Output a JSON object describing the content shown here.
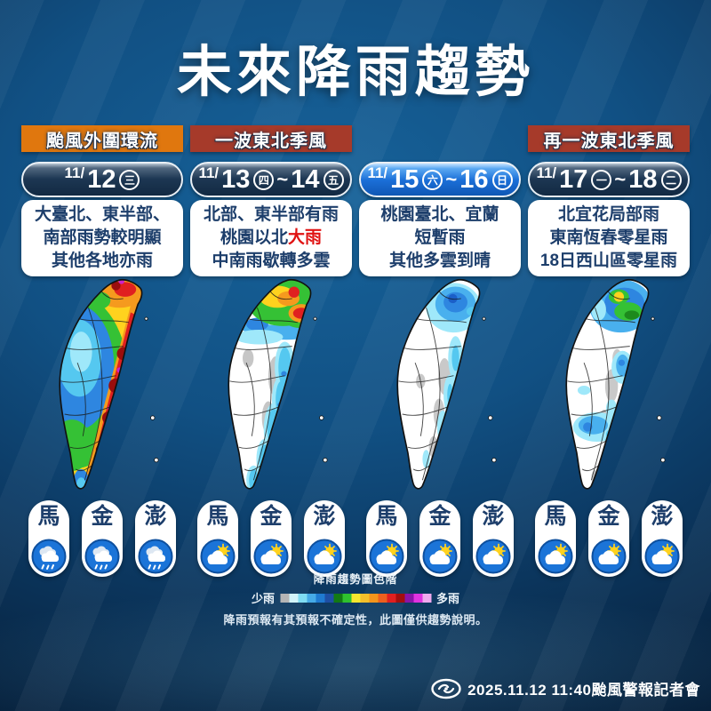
{
  "title": "未來降雨趨勢",
  "tags": {
    "t1": "颱風外圍環流",
    "t2": "一波東北季風",
    "t3": "再一波東北季風"
  },
  "islands": {
    "m": "馬",
    "k": "金",
    "p": "澎"
  },
  "panels": [
    {
      "slash": "11/",
      "day1": "12",
      "wd1": "三",
      "lines": [
        "大臺北、東半部、",
        "南部雨勢較明顯",
        "其他各地亦雨"
      ],
      "weather": "rain"
    },
    {
      "slash": "11/",
      "day1": "13",
      "wd1": "四",
      "tilde": "~",
      "day2": "14",
      "wd2": "五",
      "lines": [
        "北部、東半部有雨",
        "桃園以北",
        "中南雨歇轉多雲"
      ],
      "red": "大雨",
      "weather": "sun-cloud"
    },
    {
      "slash": "11/",
      "day1": "15",
      "wd1": "六",
      "tilde": "~",
      "day2": "16",
      "wd2": "日",
      "lines": [
        "桃園臺北、宜蘭",
        "短暫雨",
        "其他多雲到晴"
      ],
      "weather": "sun-cloud"
    },
    {
      "slash": "11/",
      "day1": "17",
      "wd1": "一",
      "tilde": "~",
      "day2": "18",
      "wd2": "二",
      "lines": [
        "北宜花局部雨",
        "東南恆春零星雨",
        "18日西山區零星雨"
      ],
      "weather": "sun-cloud"
    }
  ],
  "legend": {
    "title": "降雨趨勢圖色階",
    "less": "少雨",
    "more": "多雨",
    "colors": [
      "#b5b5b5",
      "#d2f4fa",
      "#7fdcf2",
      "#45aae6",
      "#1f7ad0",
      "#1e4fa4",
      "#137a13",
      "#2fc12f",
      "#f5e62e",
      "#f5bf2a",
      "#f5951c",
      "#ee5f1e",
      "#e01f1f",
      "#a30e0e",
      "#8a14a8",
      "#e033e0",
      "#f0aaee"
    ],
    "note": "降雨預報有其預報不確定性，此圖僅供趨勢說明。"
  },
  "footer": {
    "text": "2025.11.12  11:40颱風警報記者會"
  },
  "accent_colors": {
    "tag_orange": "#e0770e",
    "tag_crimson": "#a63a2a",
    "heavy_rain_red": "#e01212",
    "text_navy": "#1d3e6b"
  }
}
